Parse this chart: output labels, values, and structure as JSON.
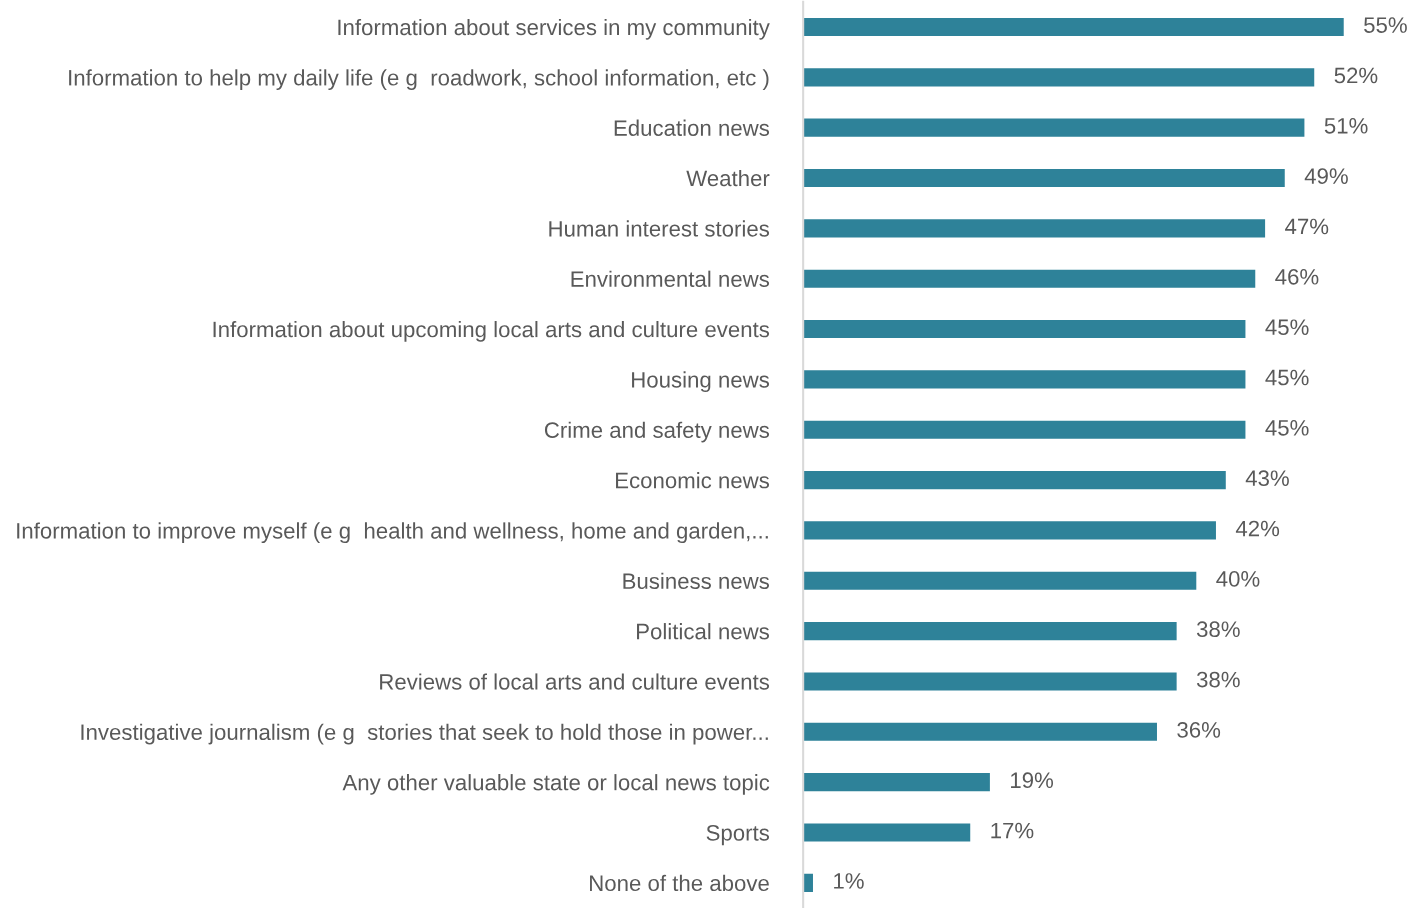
{
  "chart_data": {
    "type": "bar",
    "orientation": "horizontal",
    "categories": [
      "Information about services in my community",
      "Information to help my daily life (e g  roadwork, school information, etc )",
      "Education news",
      "Weather",
      "Human interest stories",
      "Environmental news",
      "Information about upcoming local arts and culture events",
      "Housing news",
      "Crime and safety news",
      "Economic news",
      "Information to improve myself (e g  health and wellness, home and garden,...",
      "Business news",
      "Political news",
      "Reviews of local arts and culture events",
      "Investigative journalism (e g  stories that seek to hold those in power...",
      "Any other valuable state or local news topic",
      "Sports",
      "None of the above"
    ],
    "values": [
      55,
      52,
      51,
      49,
      47,
      46,
      45,
      45,
      45,
      43,
      42,
      40,
      38,
      38,
      36,
      19,
      17,
      1
    ],
    "value_labels": [
      "55%",
      "52%",
      "51%",
      "49%",
      "47%",
      "46%",
      "45%",
      "45%",
      "45%",
      "43%",
      "42%",
      "40%",
      "38%",
      "38%",
      "36%",
      "19%",
      "17%",
      "1%"
    ],
    "color": "#2e8299",
    "tick_labels": "y",
    "grid": false,
    "legend": false
  }
}
